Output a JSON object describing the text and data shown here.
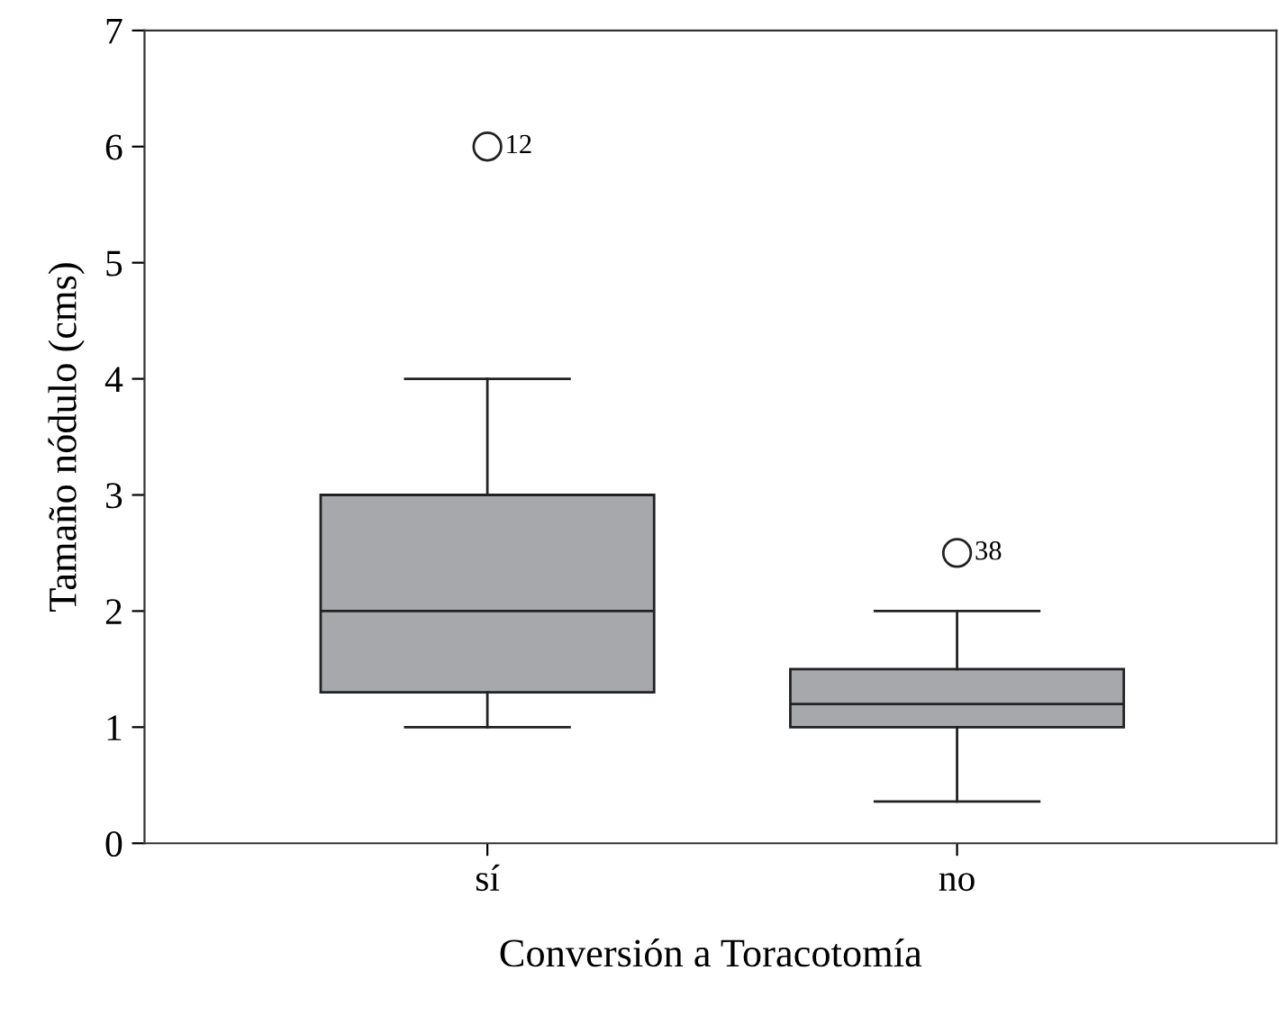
{
  "chart_data": {
    "type": "box",
    "xlabel": "Conversión a Toracotomía",
    "ylabel": "Tamaño nódulo (cms)",
    "categories": [
      "sí",
      "no"
    ],
    "color": "#a7a8ab",
    "boxes": [
      {
        "low": 1.0,
        "q1": 1.3,
        "median": 2.0,
        "q3": 3.0,
        "high": 4.0,
        "outliers": [
          6.0
        ]
      },
      {
        "low": 0.36,
        "q1": 1.0,
        "median": 1.2,
        "q3": 1.5,
        "high": 2.0,
        "outliers": [
          2.5
        ]
      }
    ],
    "ylim": [
      0,
      7
    ],
    "yticks": [
      0,
      1,
      2,
      3,
      4,
      5,
      6,
      7
    ],
    "grid": false,
    "annotations": [
      "12",
      "38"
    ]
  }
}
